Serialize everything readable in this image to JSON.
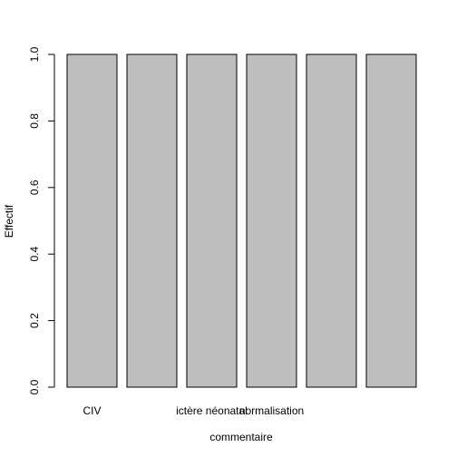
{
  "chart_data": {
    "type": "bar",
    "categories": [
      "CIV",
      "",
      "ictère néonatal",
      "normalisation",
      "",
      ""
    ],
    "values": [
      1,
      1,
      1,
      1,
      1,
      1
    ],
    "title": "",
    "xlabel": "commentaire",
    "ylabel": "Effectif",
    "ylim": [
      0,
      1
    ],
    "yticks": [
      "0.0",
      "0.2",
      "0.4",
      "0.6",
      "0.8",
      "1.0"
    ],
    "grid": false,
    "bar_color": "#bebebe",
    "border_color": "#000000"
  }
}
